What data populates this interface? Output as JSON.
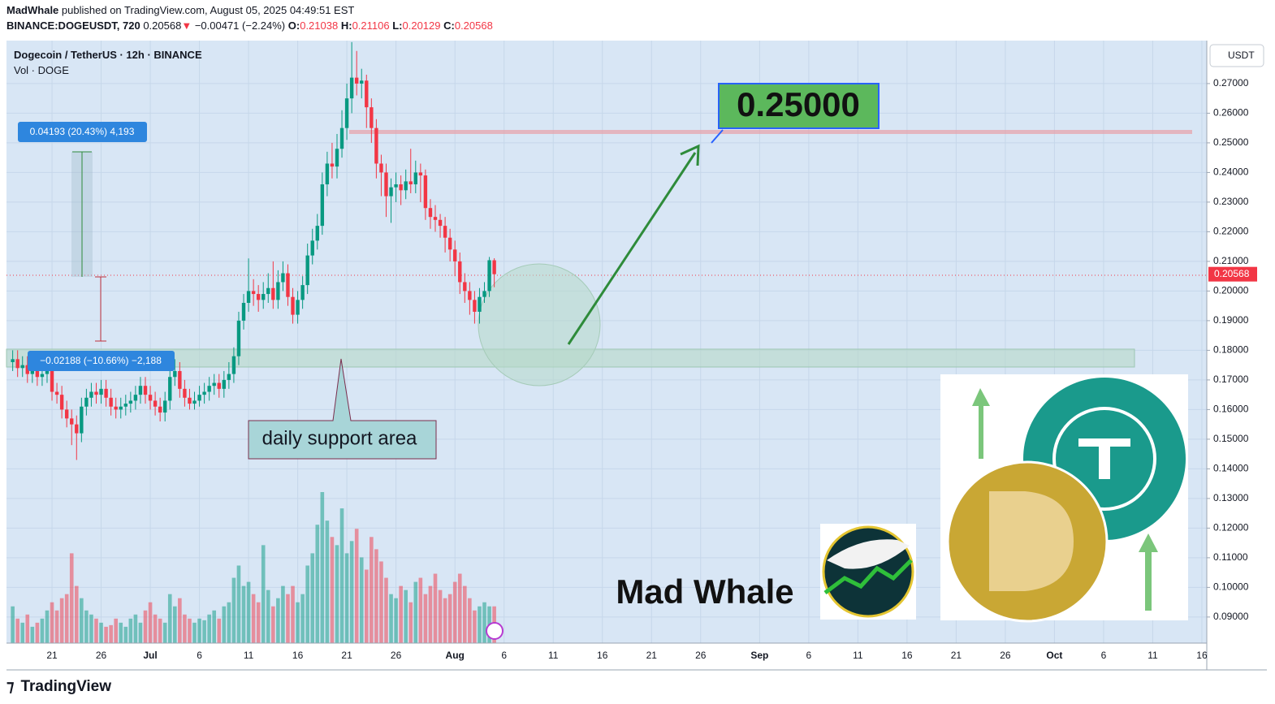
{
  "header": {
    "author": "MadWhale",
    "published": "published on TradingView.com, August 05, 2025 04:49:51 EST",
    "symbol": "BINANCE:DOGEUSDT, 720",
    "change": "−0.00471 (−2.24%)",
    "o_label": "O:",
    "h_label": "H:",
    "l_label": "L:",
    "c_label": "C:"
  },
  "chart_data": {
    "type": "candlestick",
    "title": "Dogecoin / TetherUS · 12h · BINANCE",
    "subtitle": "Vol · DOGE",
    "currency": "USDT",
    "open": [
      0.176,
      0.177,
      0.174,
      0.175,
      0.172,
      0.173,
      0.171,
      0.172,
      0.174,
      0.166,
      0.165,
      0.16,
      0.157,
      0.155,
      0.152,
      0.161,
      0.164,
      0.166,
      0.165,
      0.167,
      0.164,
      0.161,
      0.16,
      0.161,
      0.162,
      0.163,
      0.165,
      0.168,
      0.165,
      0.163,
      0.161,
      0.159,
      0.163,
      0.171,
      0.173,
      0.167,
      0.164,
      0.162,
      0.163,
      0.165,
      0.166,
      0.168,
      0.169,
      0.167,
      0.17,
      0.172,
      0.178,
      0.19,
      0.196,
      0.2,
      0.199,
      0.197,
      0.199,
      0.201,
      0.197,
      0.203,
      0.206,
      0.198,
      0.192,
      0.197,
      0.202,
      0.212,
      0.217,
      0.222,
      0.236,
      0.243,
      0.242,
      0.248,
      0.255,
      0.265,
      0.272,
      0.27,
      0.271,
      0.262,
      0.255,
      0.243,
      0.24,
      0.232,
      0.235,
      0.236,
      0.234,
      0.237,
      0.236,
      0.24,
      0.239,
      0.228,
      0.225,
      0.224,
      0.222,
      0.218,
      0.214,
      0.21,
      0.203,
      0.2,
      0.197,
      0.193,
      0.198,
      0.2,
      0.21038
    ],
    "high": [
      0.18,
      0.18,
      0.178,
      0.178,
      0.176,
      0.176,
      0.175,
      0.177,
      0.177,
      0.169,
      0.168,
      0.163,
      0.16,
      0.158,
      0.164,
      0.167,
      0.169,
      0.169,
      0.17,
      0.17,
      0.167,
      0.164,
      0.164,
      0.165,
      0.166,
      0.168,
      0.171,
      0.171,
      0.168,
      0.166,
      0.164,
      0.166,
      0.174,
      0.177,
      0.176,
      0.17,
      0.167,
      0.166,
      0.168,
      0.169,
      0.171,
      0.172,
      0.172,
      0.173,
      0.176,
      0.181,
      0.193,
      0.199,
      0.211,
      0.204,
      0.202,
      0.203,
      0.206,
      0.21,
      0.207,
      0.21,
      0.209,
      0.201,
      0.2,
      0.205,
      0.216,
      0.221,
      0.226,
      0.24,
      0.247,
      0.25,
      0.253,
      0.261,
      0.27,
      0.284,
      0.281,
      0.275,
      0.273,
      0.265,
      0.258,
      0.246,
      0.243,
      0.238,
      0.24,
      0.239,
      0.241,
      0.248,
      0.244,
      0.243,
      0.241,
      0.231,
      0.229,
      0.226,
      0.225,
      0.221,
      0.217,
      0.213,
      0.206,
      0.203,
      0.2,
      0.201,
      0.203,
      0.2115,
      0.21106
    ],
    "low": [
      0.173,
      0.171,
      0.171,
      0.169,
      0.169,
      0.168,
      0.168,
      0.169,
      0.163,
      0.162,
      0.157,
      0.154,
      0.148,
      0.143,
      0.149,
      0.158,
      0.161,
      0.162,
      0.162,
      0.161,
      0.158,
      0.157,
      0.157,
      0.158,
      0.159,
      0.16,
      0.162,
      0.162,
      0.16,
      0.158,
      0.156,
      0.156,
      0.16,
      0.168,
      0.164,
      0.161,
      0.16,
      0.16,
      0.161,
      0.162,
      0.163,
      0.165,
      0.164,
      0.164,
      0.167,
      0.169,
      0.175,
      0.187,
      0.193,
      0.195,
      0.193,
      0.194,
      0.196,
      0.194,
      0.194,
      0.2,
      0.195,
      0.189,
      0.189,
      0.194,
      0.199,
      0.209,
      0.214,
      0.219,
      0.232,
      0.238,
      0.238,
      0.245,
      0.251,
      0.26,
      0.266,
      0.265,
      0.255,
      0.25,
      0.238,
      0.232,
      0.225,
      0.223,
      0.23,
      0.229,
      0.231,
      0.233,
      0.233,
      0.23,
      0.224,
      0.221,
      0.22,
      0.218,
      0.213,
      0.21,
      0.205,
      0.199,
      0.196,
      0.192,
      0.189,
      0.189,
      0.196,
      0.198,
      0.20129
    ],
    "close": [
      0.177,
      0.174,
      0.175,
      0.172,
      0.173,
      0.171,
      0.172,
      0.174,
      0.166,
      0.165,
      0.16,
      0.157,
      0.155,
      0.152,
      0.161,
      0.164,
      0.166,
      0.165,
      0.167,
      0.164,
      0.161,
      0.16,
      0.161,
      0.162,
      0.163,
      0.165,
      0.168,
      0.165,
      0.163,
      0.161,
      0.159,
      0.163,
      0.171,
      0.173,
      0.167,
      0.164,
      0.162,
      0.163,
      0.165,
      0.166,
      0.168,
      0.169,
      0.167,
      0.17,
      0.172,
      0.178,
      0.19,
      0.196,
      0.2,
      0.199,
      0.197,
      0.199,
      0.201,
      0.197,
      0.203,
      0.206,
      0.198,
      0.192,
      0.197,
      0.202,
      0.212,
      0.217,
      0.222,
      0.236,
      0.243,
      0.242,
      0.248,
      0.255,
      0.265,
      0.272,
      0.27,
      0.271,
      0.262,
      0.255,
      0.243,
      0.24,
      0.232,
      0.235,
      0.236,
      0.234,
      0.237,
      0.236,
      0.24,
      0.239,
      0.228,
      0.225,
      0.224,
      0.222,
      0.218,
      0.214,
      0.21,
      0.203,
      0.2,
      0.197,
      0.193,
      0.198,
      0.2,
      0.2104,
      0.20568
    ],
    "volume": [
      45,
      30,
      25,
      35,
      20,
      25,
      30,
      40,
      50,
      40,
      55,
      60,
      110,
      70,
      55,
      40,
      35,
      30,
      25,
      20,
      22,
      30,
      25,
      20,
      30,
      35,
      25,
      40,
      50,
      35,
      30,
      25,
      60,
      45,
      55,
      35,
      30,
      25,
      30,
      28,
      35,
      40,
      30,
      45,
      50,
      80,
      95,
      70,
      75,
      60,
      50,
      120,
      65,
      45,
      55,
      70,
      60,
      70,
      50,
      60,
      95,
      110,
      145,
      185,
      150,
      130,
      120,
      165,
      110,
      125,
      140,
      105,
      90,
      130,
      115,
      100,
      80,
      60,
      55,
      70,
      65,
      50,
      75,
      80,
      60,
      70,
      85,
      65,
      55,
      60,
      75,
      85,
      70,
      55,
      40,
      45,
      50,
      45,
      45
    ],
    "up_color": "#089981",
    "down_color": "#f23645",
    "xlim": [
      -1.26,
      243
    ],
    "xticks": [
      {
        "value": 8,
        "label": "21"
      },
      {
        "value": 18,
        "label": "26"
      },
      {
        "value": 28,
        "label": "Jul"
      },
      {
        "value": 38,
        "label": "6"
      },
      {
        "value": 48,
        "label": "11"
      },
      {
        "value": 58,
        "label": "16"
      },
      {
        "value": 68,
        "label": "21"
      },
      {
        "value": 78,
        "label": "26"
      },
      {
        "value": 90,
        "label": "Aug"
      },
      {
        "value": 100,
        "label": "6"
      },
      {
        "value": 110,
        "label": "11"
      },
      {
        "value": 120,
        "label": "16"
      },
      {
        "value": 130,
        "label": "21"
      },
      {
        "value": 140,
        "label": "26"
      },
      {
        "value": 152,
        "label": "Sep"
      },
      {
        "value": 162,
        "label": "6"
      },
      {
        "value": 172,
        "label": "11"
      },
      {
        "value": 182,
        "label": "16"
      },
      {
        "value": 192,
        "label": "21"
      },
      {
        "value": 202,
        "label": "26"
      },
      {
        "value": 212,
        "label": "Oct"
      },
      {
        "value": 222,
        "label": "6"
      },
      {
        "value": 232,
        "label": "11"
      },
      {
        "value": 242,
        "label": "16"
      }
    ],
    "ylim": [
      0.0812,
      0.2845
    ],
    "yticks": [
      {
        "value": 0.09,
        "label": "0.09000"
      },
      {
        "value": 0.1,
        "label": "0.10000"
      },
      {
        "value": 0.11,
        "label": "0.11000"
      },
      {
        "value": 0.12,
        "label": "0.12000"
      },
      {
        "value": 0.13,
        "label": "0.13000"
      },
      {
        "value": 0.14,
        "label": "0.14000"
      },
      {
        "value": 0.15,
        "label": "0.15000"
      },
      {
        "value": 0.16,
        "label": "0.16000"
      },
      {
        "value": 0.17,
        "label": "0.17000"
      },
      {
        "value": 0.18,
        "label": "0.18000"
      },
      {
        "value": 0.19,
        "label": "0.19000"
      },
      {
        "value": 0.2,
        "label": "0.20000"
      },
      {
        "value": 0.21,
        "label": "0.21000"
      },
      {
        "value": 0.22,
        "label": "0.22000"
      },
      {
        "value": 0.23,
        "label": "0.23000"
      },
      {
        "value": 0.24,
        "label": "0.24000"
      },
      {
        "value": 0.25,
        "label": "0.25000"
      },
      {
        "value": 0.26,
        "label": "0.26000"
      },
      {
        "value": 0.27,
        "label": "0.27000"
      }
    ],
    "grid": true,
    "annotations": {
      "measure_up": "0.04193 (20.43%) 4,193",
      "measure_down": "−0.02188 (−10.66%) −2,188",
      "target": "0.25000",
      "support": "daily support area",
      "brand": "Mad Whale"
    }
  },
  "footer": {
    "logo": "TradingView"
  }
}
